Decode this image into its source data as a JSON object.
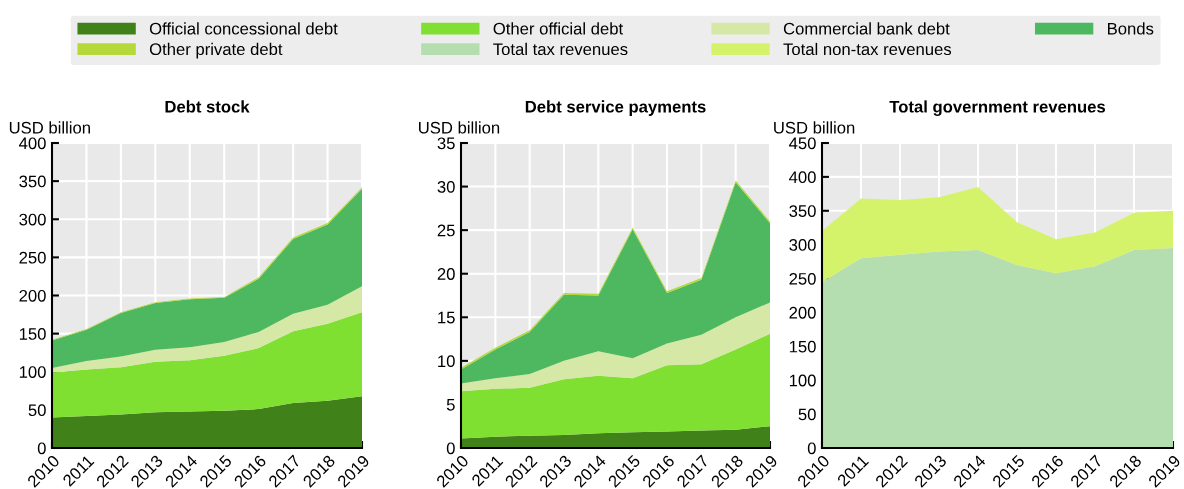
{
  "chart_data": [
    {
      "type": "area",
      "stacked": true,
      "title": "Debt stock",
      "ylabel": "USD billion",
      "x": [
        2010,
        2011,
        2012,
        2013,
        2014,
        2015,
        2016,
        2017,
        2018,
        2019
      ],
      "xlim": [
        2010,
        2019
      ],
      "xticks": [
        2010,
        2011,
        2012,
        2013,
        2014,
        2015,
        2016,
        2017,
        2018,
        2019
      ],
      "ylim": [
        0,
        400
      ],
      "yticks": [
        0,
        50,
        100,
        150,
        200,
        250,
        300,
        350,
        400
      ],
      "grid": true,
      "legend": "top",
      "series": [
        {
          "name": "Official concessional debt",
          "color": "#41811a",
          "values": [
            40,
            42,
            44,
            47,
            48,
            49,
            51,
            59,
            62,
            68
          ]
        },
        {
          "name": "Other official debt",
          "color": "#7fe032",
          "values": [
            59,
            61,
            62,
            66,
            67,
            72,
            80,
            94,
            101,
            110
          ]
        },
        {
          "name": "Commercial bank debt",
          "color": "#d5e8a6",
          "values": [
            6,
            11,
            14,
            16,
            17,
            18,
            21,
            23,
            25,
            34
          ]
        },
        {
          "name": "Bonds",
          "color": "#4db85f",
          "values": [
            36,
            41,
            57,
            61,
            63,
            58,
            70,
            98,
            105,
            128
          ]
        },
        {
          "name": "Other private debt",
          "color": "#b5d93a",
          "values": [
            1,
            1,
            1,
            1,
            1,
            1,
            2,
            2,
            2,
            2
          ]
        }
      ]
    },
    {
      "type": "area",
      "stacked": true,
      "title": "Debt service payments",
      "ylabel": "USD billion",
      "x": [
        2010,
        2011,
        2012,
        2013,
        2014,
        2015,
        2016,
        2017,
        2018,
        2019
      ],
      "xlim": [
        2010,
        2019
      ],
      "xticks": [
        2010,
        2011,
        2012,
        2013,
        2014,
        2015,
        2016,
        2017,
        2018,
        2019
      ],
      "ylim": [
        0,
        35
      ],
      "yticks": [
        0,
        5,
        10,
        15,
        20,
        25,
        30,
        35
      ],
      "grid": true,
      "series": [
        {
          "color": "#41811a",
          "values": [
            1.1,
            1.3,
            1.4,
            1.5,
            1.7,
            1.8,
            1.9,
            2.0,
            2.1,
            2.5
          ]
        },
        {
          "color": "#7fe032",
          "values": [
            5.4,
            5.5,
            5.5,
            6.4,
            6.6,
            6.2,
            7.6,
            7.6,
            9.2,
            10.6
          ]
        },
        {
          "color": "#d5e8a6",
          "values": [
            0.9,
            1.2,
            1.6,
            2.1,
            2.8,
            2.3,
            2.5,
            3.4,
            3.7,
            3.6
          ]
        },
        {
          "color": "#4db85f",
          "values": [
            1.6,
            3.3,
            4.8,
            7.6,
            6.4,
            14.8,
            5.8,
            6.3,
            15.5,
            9.1
          ]
        },
        {
          "color": "#b5d93a",
          "values": [
            0.2,
            0.2,
            0.2,
            0.2,
            0.2,
            0.2,
            0.2,
            0.2,
            0.2,
            0.2
          ]
        }
      ]
    },
    {
      "type": "area",
      "stacked": true,
      "title": "Total government revenues",
      "ylabel": "USD billion",
      "x": [
        2010,
        2011,
        2012,
        2013,
        2014,
        2015,
        2016,
        2017,
        2018,
        2019
      ],
      "xlim": [
        2010,
        2019
      ],
      "xticks": [
        2010,
        2011,
        2012,
        2013,
        2014,
        2015,
        2016,
        2017,
        2018,
        2019
      ],
      "ylim": [
        0,
        450
      ],
      "yticks": [
        0,
        50,
        100,
        150,
        200,
        250,
        300,
        350,
        400,
        450
      ],
      "grid": true,
      "legend": "top",
      "series": [
        {
          "name": "Total tax revenues",
          "color": "#b5deb0",
          "values": [
            245,
            280,
            285,
            290,
            292,
            270,
            258,
            268,
            292,
            295
          ]
        },
        {
          "name": "Total non-tax revenues",
          "color": "#d4f36b",
          "values": [
            75,
            88,
            81,
            80,
            93,
            63,
            50,
            50,
            55,
            55
          ]
        }
      ]
    }
  ]
}
